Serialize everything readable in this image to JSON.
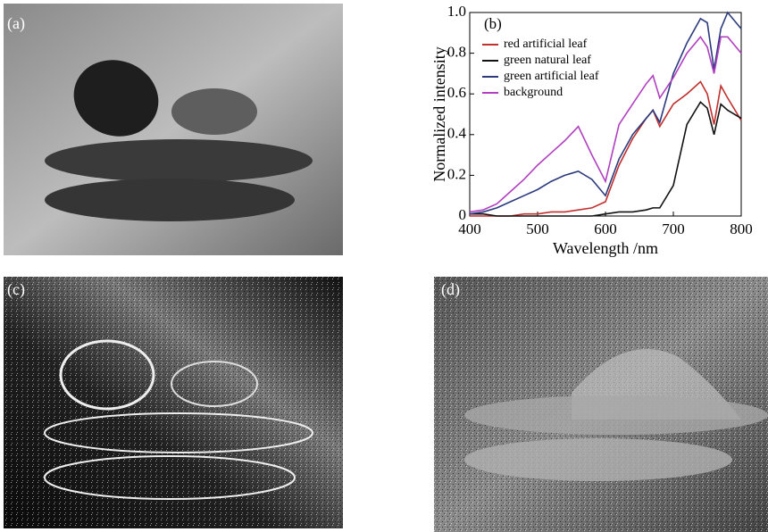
{
  "panels": [
    "(a)",
    "(c)",
    "(d)"
  ],
  "chart_data": {
    "type": "line",
    "annotation": "(b)",
    "x_label": "Wavelength /nm",
    "y_label": "Normalized intensity",
    "x": [
      400,
      420,
      440,
      460,
      480,
      500,
      520,
      540,
      560,
      580,
      600,
      620,
      640,
      660,
      670,
      680,
      700,
      720,
      740,
      750,
      760,
      770,
      780,
      800
    ],
    "series": [
      {
        "name": "red artificial leaf",
        "color": "#c0302e",
        "values": [
          0,
          0,
          0,
          0,
          0.01,
          0.01,
          0.02,
          0.02,
          0.03,
          0.04,
          0.07,
          0.25,
          0.38,
          0.48,
          0.52,
          0.44,
          0.55,
          0.6,
          0.66,
          0.6,
          0.45,
          0.64,
          0.58,
          0.47
        ]
      },
      {
        "name": "green natural leaf",
        "color": "#111111",
        "values": [
          0.01,
          0.01,
          0,
          0,
          0,
          0,
          0,
          0,
          0,
          0,
          0.01,
          0.02,
          0.02,
          0.03,
          0.04,
          0.04,
          0.15,
          0.45,
          0.56,
          0.53,
          0.4,
          0.55,
          0.52,
          0.48
        ]
      },
      {
        "name": "green artificial leaf",
        "color": "#2b3a7c",
        "values": [
          0.01,
          0.02,
          0.04,
          0.07,
          0.1,
          0.13,
          0.17,
          0.2,
          0.22,
          0.18,
          0.1,
          0.28,
          0.4,
          0.48,
          0.52,
          0.46,
          0.7,
          0.85,
          0.97,
          0.95,
          0.72,
          0.92,
          1.0,
          0.92
        ]
      },
      {
        "name": "background",
        "color": "#b040c0",
        "values": [
          0.02,
          0.03,
          0.06,
          0.12,
          0.18,
          0.25,
          0.31,
          0.37,
          0.44,
          0.3,
          0.17,
          0.45,
          0.55,
          0.65,
          0.69,
          0.58,
          0.68,
          0.8,
          0.88,
          0.83,
          0.7,
          0.88,
          0.88,
          0.8
        ]
      }
    ],
    "xlim": [
      400,
      800
    ],
    "xticks": [
      400,
      500,
      600,
      700,
      800
    ],
    "ylim": [
      0,
      1
    ],
    "yticks": [
      0,
      0.2,
      0.4,
      0.6,
      0.8,
      {
        "value": 1,
        "label": "1.0"
      }
    ],
    "legend": "upper-left"
  }
}
